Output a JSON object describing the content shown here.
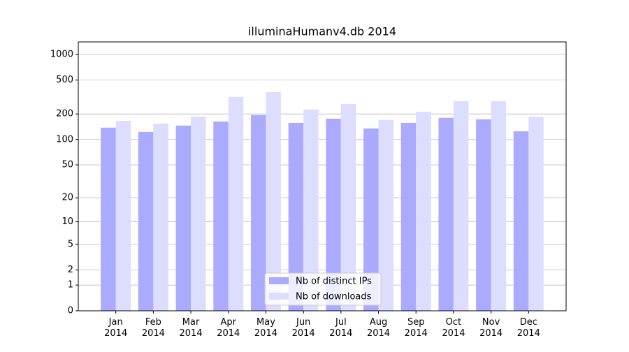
{
  "chart_data": {
    "type": "bar",
    "title": "illuminaHumanv4.db 2014",
    "categories": [
      "Jan\n2014",
      "Feb\n2014",
      "Mar\n2014",
      "Apr\n2014",
      "May\n2014",
      "Jun\n2014",
      "Jul\n2014",
      "Aug\n2014",
      "Sep\n2014",
      "Oct\n2014",
      "Nov\n2014",
      "Dec\n2014"
    ],
    "series": [
      {
        "name": "Nb of distinct IPs",
        "color": "#aaaaff",
        "values": [
          138,
          123,
          146,
          163,
          194,
          157,
          176,
          135,
          157,
          180,
          173,
          125
        ]
      },
      {
        "name": "Nb of downloads",
        "color": "#ddddff",
        "values": [
          166,
          154,
          186,
          317,
          361,
          225,
          262,
          170,
          213,
          283,
          283,
          186
        ]
      }
    ],
    "yscale": "log1p",
    "ylim": [
      0,
      1400
    ],
    "yticks": [
      0,
      1,
      2,
      5,
      10,
      20,
      50,
      100,
      200,
      500,
      1000
    ],
    "grid": true,
    "legend": "lower center"
  }
}
